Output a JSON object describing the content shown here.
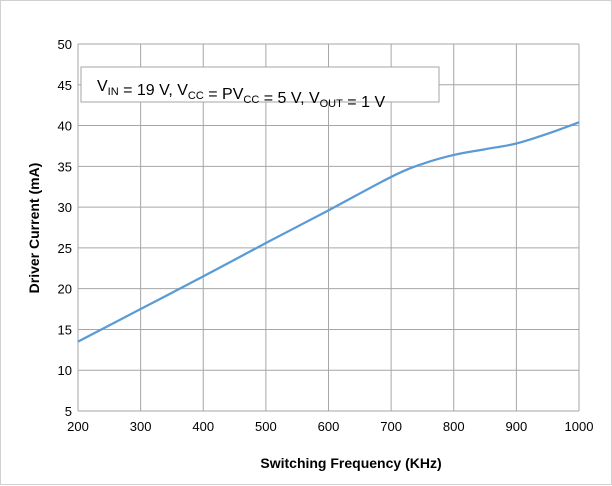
{
  "chart_data": {
    "type": "line",
    "title": "",
    "xlabel": "Switching Frequency (KHz)",
    "ylabel": "Driver Current (mA)",
    "xlim": [
      200,
      1000
    ],
    "ylim": [
      5,
      50
    ],
    "x_ticks": [
      200,
      300,
      400,
      500,
      600,
      700,
      800,
      900,
      1000
    ],
    "y_ticks": [
      5,
      10,
      15,
      20,
      25,
      30,
      35,
      40,
      45,
      50
    ],
    "grid": true,
    "legend": "none",
    "annotation": {
      "parts": [
        {
          "text": "V",
          "sub": "IN"
        },
        {
          "text": " = 19 V, V",
          "sub": "CC"
        },
        {
          "text": " = PV",
          "sub": "CC"
        },
        {
          "text": " = 5 V, V",
          "sub": "OUT"
        },
        {
          "text": " = 1 V",
          "sub": ""
        }
      ]
    },
    "series": [
      {
        "color": "#5b9bd5",
        "x": [
          200,
          300,
          400,
          500,
          600,
          700,
          750,
          800,
          850,
          900,
          950,
          1000
        ],
        "y": [
          13.5,
          17.5,
          21.5,
          25.6,
          29.6,
          33.7,
          35.3,
          36.4,
          37.1,
          37.8,
          39.0,
          40.4
        ]
      }
    ]
  }
}
